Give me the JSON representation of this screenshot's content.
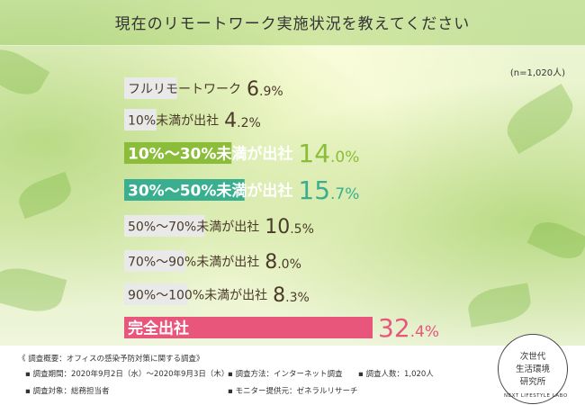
{
  "title": "現在のリモートワーク実施状況を教えてください",
  "note": "(n=1,020人)",
  "colors": {
    "highlight_green": "#8cbd3a",
    "highlight_teal": "#3aaf8f",
    "highlight_pink": "#e8567c",
    "default_bar": "#e9e9e9"
  },
  "chart_data": {
    "type": "bar",
    "orientation": "horizontal",
    "categories": [
      "フルリモートワーク",
      "10%未満が出社",
      "10%〜30%未満が出社",
      "30%〜50%未満が出社",
      "50%〜70%未満が出社",
      "70%〜90%未満が出社",
      "90%〜100%未満が出社",
      "完全出社"
    ],
    "values": [
      6.9,
      4.2,
      14.0,
      15.7,
      10.5,
      8.0,
      8.3,
      32.4
    ],
    "value_labels": [
      {
        "int": "6",
        "dec": ".9%"
      },
      {
        "int": "4",
        "dec": ".2%"
      },
      {
        "int": "14",
        "dec": ".0%"
      },
      {
        "int": "15",
        "dec": ".7%"
      },
      {
        "int": "10",
        "dec": ".5%"
      },
      {
        "int": "8",
        "dec": ".0%"
      },
      {
        "int": "8",
        "dec": ".3%"
      },
      {
        "int": "32",
        "dec": ".4%"
      }
    ],
    "bar_colors": [
      "#e9e9e9",
      "#e9e9e9",
      "#8cbd3a",
      "#3aaf8f",
      "#e9e9e9",
      "#e9e9e9",
      "#e9e9e9",
      "#e8567c"
    ],
    "label_colors": [
      "#4a3a2a",
      "#4a3a2a",
      "#ffffff",
      "#ffffff",
      "#4a3a2a",
      "#4a3a2a",
      "#4a3a2a",
      "#ffffff"
    ],
    "value_colors": [
      "#4a3a2a",
      "#4a3a2a",
      "#8cbd3a",
      "#3aaf8f",
      "#4a3a2a",
      "#4a3a2a",
      "#4a3a2a",
      "#e8567c"
    ],
    "unit": "%"
  },
  "footer": {
    "summary": "《 調査概要：オフィスの感染予防対策に関する調査》",
    "period": "▪ 調査期間：2020年9月2日（水）〜2020年9月3日（木）",
    "method": "▪ 調査方法：インターネット調査",
    "count": "▪ 調査人数：1,020人",
    "target": "▪ 調査対象：総務担当者",
    "provider": "▪ モニター提供元：ゼネラルリサーチ"
  },
  "logo": {
    "line1": "次世代",
    "line2": "生活環境",
    "line3": "研究所",
    "en": "NEXT LIFESTYLE LABO"
  }
}
